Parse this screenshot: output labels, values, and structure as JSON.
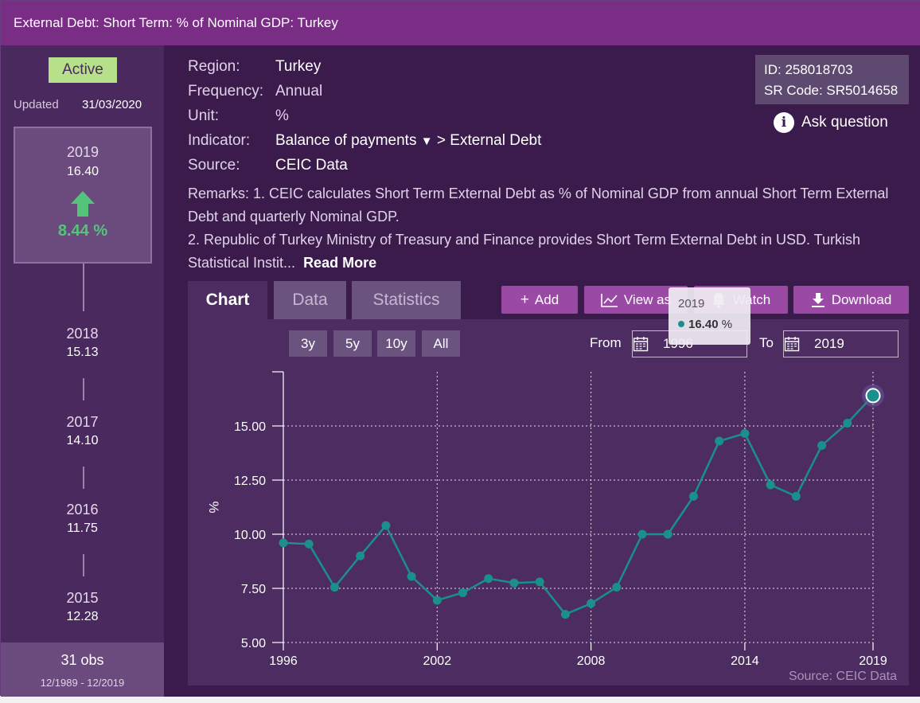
{
  "title": "External Debt: Short Term: % of Nominal GDP: Turkey",
  "sidebar": {
    "status": "Active",
    "updated_label": "Updated",
    "updated_date": "31/03/2020",
    "current": {
      "year": "2019",
      "value": "16.40",
      "change": "8.44 %"
    },
    "history": [
      {
        "year": "2018",
        "value": "15.13"
      },
      {
        "year": "2017",
        "value": "14.10"
      },
      {
        "year": "2016",
        "value": "11.75"
      },
      {
        "year": "2015",
        "value": "12.28"
      }
    ],
    "obs": "31 obs",
    "range": "12/1989 - 12/2019"
  },
  "meta": {
    "region_label": "Region:",
    "region": "Turkey",
    "frequency_label": "Frequency:",
    "frequency": "Annual",
    "unit_label": "Unit:",
    "unit": "%",
    "indicator_label": "Indicator:",
    "indicator": "Balance of payments",
    "indicator_sep": ">",
    "indicator_sub": "External Debt",
    "source_label": "Source:",
    "source": "CEIC Data",
    "id": "ID: 258018703",
    "sr_code": "SR Code: SR5014658",
    "ask": "Ask question",
    "remarks_1": "Remarks: 1. CEIC calculates Short Term External Debt as % of Nominal GDP from annual Short Term External Debt and quarterly Nominal GDP.",
    "remarks_2": "2. Republic of Turkey Ministry of Treasury and Finance provides Short Term External Debt in USD. Turkish Statistical Instit...",
    "read_more": "Read More"
  },
  "tabs": [
    "Chart",
    "Data",
    "Statistics"
  ],
  "toolbar": {
    "add": "Add",
    "view_as": "View as",
    "watch": "Watch",
    "download": "Download"
  },
  "ranges": [
    "3y",
    "5y",
    "10y",
    "All"
  ],
  "from_label": "From",
  "from": "1996",
  "to_label": "To",
  "to": "2019",
  "tooltip": {
    "year": "2019",
    "value": "16.40",
    "unit": "%"
  },
  "colors": {
    "line": "#1a8f8c",
    "accent": "#9a4aa5",
    "positive": "#55c47a"
  },
  "chart_data": {
    "type": "line",
    "title": "External Debt: Short Term: % of Nominal GDP: Turkey",
    "ylabel": "%",
    "xlabel": "",
    "ylim": [
      5.0,
      17.5
    ],
    "yticks": [
      "15.00",
      "12.50",
      "10.00",
      "7.50",
      "5.00"
    ],
    "ytick_values": [
      15,
      12.5,
      10,
      7.5,
      5
    ],
    "xticks": [
      "1996",
      "2002",
      "2008",
      "2014",
      "2019"
    ],
    "xtick_values": [
      1996,
      2002,
      2008,
      2014,
      2019
    ],
    "x": [
      1996,
      1997,
      1998,
      1999,
      2000,
      2001,
      2002,
      2003,
      2004,
      2005,
      2006,
      2007,
      2008,
      2009,
      2010,
      2011,
      2012,
      2013,
      2014,
      2015,
      2016,
      2017,
      2018,
      2019
    ],
    "values": [
      9.6,
      9.55,
      7.55,
      9.0,
      10.4,
      8.05,
      6.95,
      7.3,
      7.95,
      7.75,
      7.8,
      6.3,
      6.8,
      7.55,
      10.0,
      10.0,
      11.75,
      14.3,
      14.65,
      12.28,
      11.75,
      14.1,
      15.13,
      16.4
    ],
    "source": "Source: CEIC Data",
    "grid": true
  }
}
